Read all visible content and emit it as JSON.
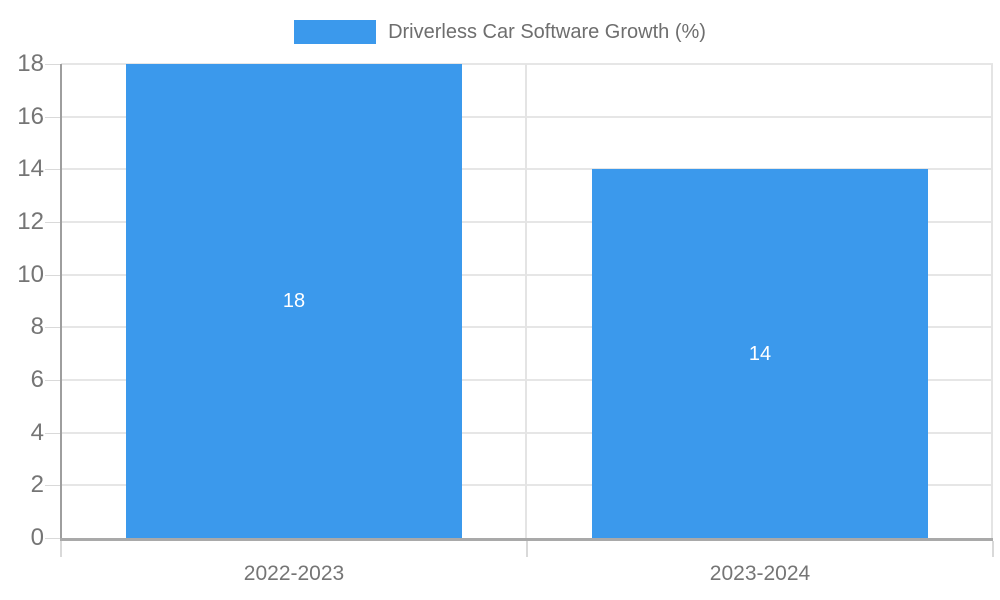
{
  "chart_data": {
    "type": "bar",
    "legend": {
      "position": "top",
      "label": "Driverless Car Software Growth (%)"
    },
    "categories": [
      "2022-2023",
      "2023-2024"
    ],
    "values": [
      18,
      14
    ],
    "data_labels": [
      "18",
      "14"
    ],
    "ylim": [
      0,
      18
    ],
    "yticks": [
      0,
      2,
      4,
      6,
      8,
      10,
      12,
      14,
      16,
      18
    ],
    "grid": true
  },
  "colors": {
    "background": "#FFFFFF",
    "bar": "#3B99EC",
    "gridline": "#E6E6E6",
    "vertical_gridline": "#E4E4E4",
    "baseline": "#A9A9A9",
    "y_axis_line": "#9E9E9E",
    "tick": "#D9D9D9",
    "axis_text": "#757575",
    "legend_text": "#6E6E6E",
    "data_label_text": "#FFFFFF"
  }
}
